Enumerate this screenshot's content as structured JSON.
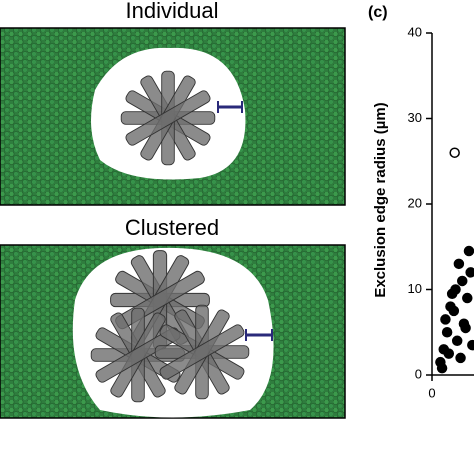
{
  "panels": {
    "individual": {
      "title": "Individual"
    },
    "clustered": {
      "title": "Clustered"
    }
  },
  "chart_data": {
    "type": "scatter",
    "label": "(c)",
    "ylabel": "Exclusion edge radius (µm)",
    "ylim": [
      0,
      40
    ],
    "yticks": [
      0,
      10,
      20,
      30,
      40
    ],
    "xlim": [
      0,
      0.5
    ],
    "xticks": [
      0
    ],
    "series": [
      {
        "color": "#000000",
        "marker": "open",
        "x": [
          0.27
        ],
        "values": [
          26
        ]
      },
      {
        "color": "#000000",
        "marker": "filled",
        "x": [
          0.1,
          0.14,
          0.18,
          0.22,
          0.26,
          0.3,
          0.34,
          0.38,
          0.42,
          0.46,
          0.12,
          0.2,
          0.28,
          0.36,
          0.44,
          0.16,
          0.24,
          0.32,
          0.4,
          0.48
        ],
        "values": [
          1.5,
          3,
          5,
          8,
          7.5,
          4,
          2,
          6,
          9,
          12,
          0.8,
          2.5,
          10,
          11,
          14.5,
          6.5,
          9.5,
          13,
          5.5,
          3.5
        ]
      }
    ]
  }
}
